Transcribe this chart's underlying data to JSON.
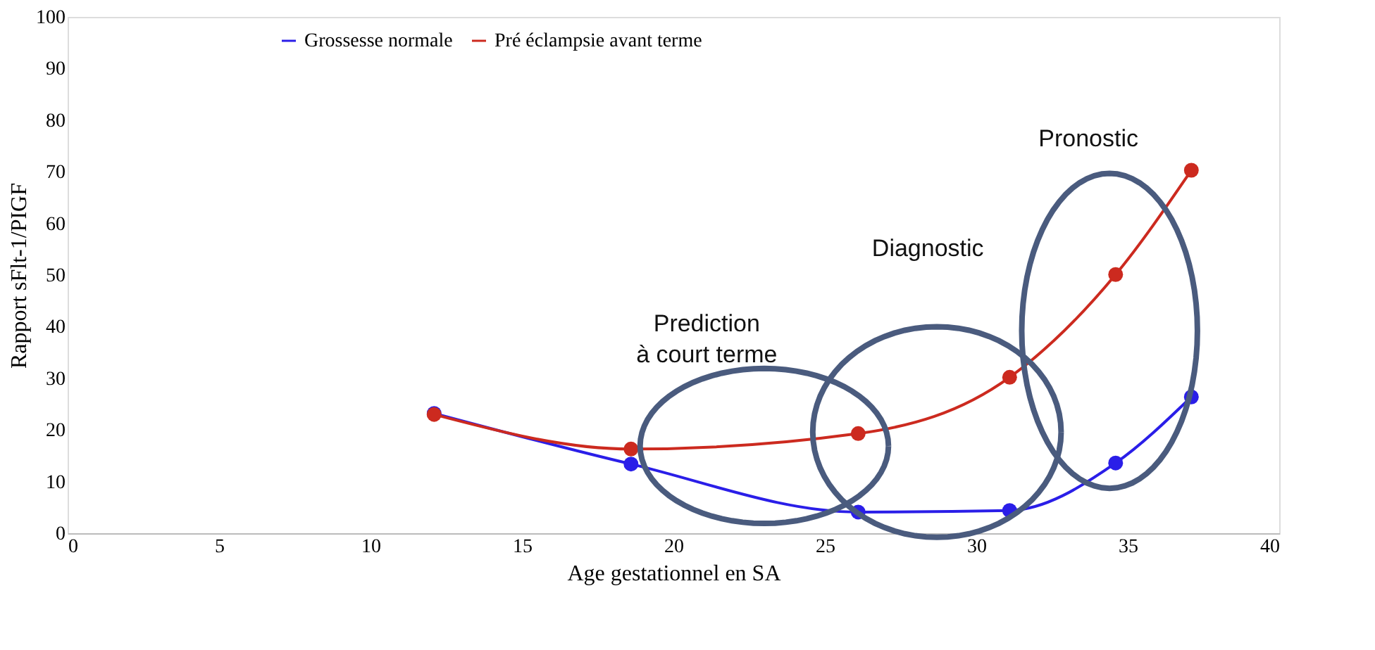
{
  "chart_data": {
    "type": "line",
    "xlabel": "Age gestationnel en SA",
    "ylabel": "Rapport sFlt-1/PIGF",
    "x": [
      12.1,
      18.6,
      26.1,
      31.1,
      34.6,
      37.1
    ],
    "series": [
      {
        "name": "Grossesse normale",
        "color": "#2a1ee8",
        "values": [
          23.2,
          13.4,
          4.1,
          4.4,
          13.6,
          26.4
        ]
      },
      {
        "name": "Pré éclampsie avant terme",
        "color": "#cc2a1f",
        "values": [
          23.0,
          16.3,
          19.3,
          30.2,
          50.1,
          70.3
        ]
      }
    ],
    "xlim": [
      0,
      40
    ],
    "xticks": [
      0,
      5,
      10,
      15,
      20,
      25,
      30,
      35,
      40
    ],
    "ylim": [
      0,
      100
    ],
    "yticks": [
      0,
      10,
      20,
      30,
      40,
      50,
      60,
      70,
      80,
      90,
      100
    ],
    "grid": false,
    "legend": "top",
    "marker": "circle",
    "line_style": "solid",
    "annotations": [
      "Prediction\nà court terme",
      "Diagnostic",
      "Pronostic"
    ]
  }
}
